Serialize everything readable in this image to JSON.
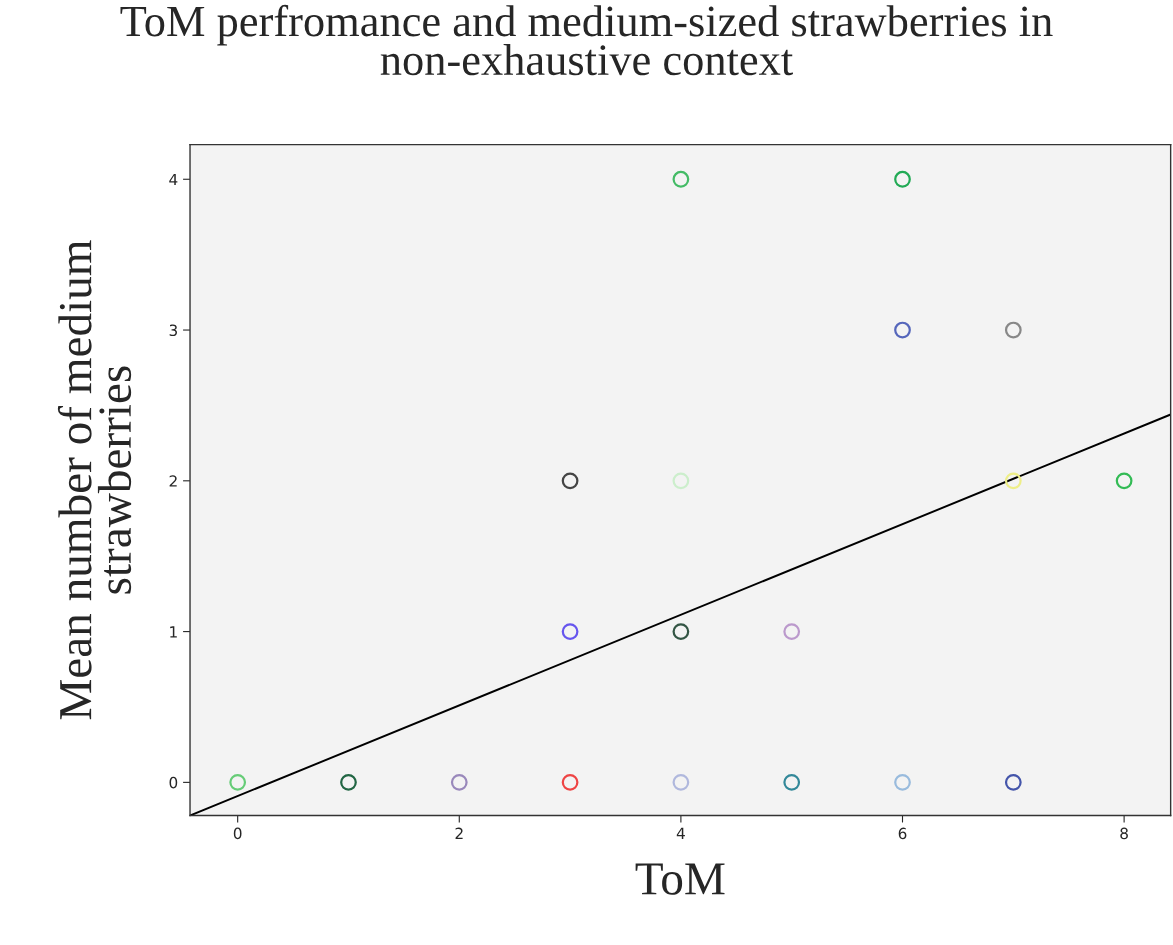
{
  "chart_data": {
    "type": "scatter",
    "title": "ToM perfromance and medium-sized strawberries in\nnon-exhaustive context",
    "xlabel": "ToM",
    "ylabel": "Mean number of medium\nstrawberries",
    "xlim": [
      -0.43,
      8.42
    ],
    "ylim": [
      -0.22,
      4.23
    ],
    "xticks": [
      0,
      2,
      4,
      6,
      8
    ],
    "yticks": [
      0,
      1,
      2,
      3,
      4
    ],
    "grid": false,
    "series": [
      {
        "marker": "circle",
        "x": [
          0,
          1,
          2,
          3,
          4,
          5,
          6,
          7,
          3,
          4,
          5,
          3,
          4,
          7,
          8,
          6,
          7,
          4,
          6
        ],
        "values": [
          0,
          0,
          0,
          0,
          0,
          0,
          0,
          0,
          1,
          1,
          1,
          2,
          2,
          2,
          2,
          3,
          3,
          4,
          4
        ],
        "colors": [
          "#66cc77",
          "#226644",
          "#9988bb",
          "#ee4444",
          "#b0b8dd",
          "#338899",
          "#99bbdd",
          "#4455aa",
          "#6655ee",
          "#335544",
          "#bb99cc",
          "#444444",
          "#cceecc",
          "#eeee88",
          "#33bb55",
          "#5566bb",
          "#888888",
          "#44bb66",
          "#22aa55"
        ]
      },
      {
        "type": "line",
        "x": [
          -0.43,
          8.42
        ],
        "values": [
          -0.22,
          2.44
        ],
        "color": "#000000"
      }
    ]
  }
}
